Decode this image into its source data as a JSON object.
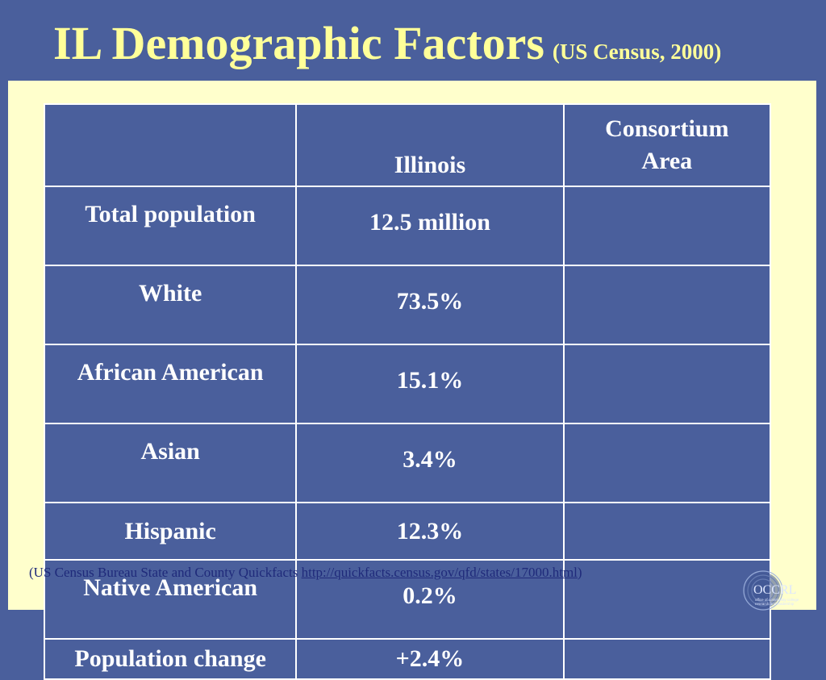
{
  "slide": {
    "title": "IL Demographic Factors",
    "subtitle": "(US Census, 2000)"
  },
  "table": {
    "header": {
      "col1": "",
      "col2": "Illinois",
      "col3_line1": "Consortium",
      "col3_line2": "Area"
    },
    "rows": [
      {
        "label": "Total population",
        "illinois": "12.5 million",
        "consortium": ""
      },
      {
        "label": "White",
        "illinois": "73.5%",
        "consortium": ""
      },
      {
        "label": "African American",
        "illinois": "15.1%",
        "consortium": ""
      },
      {
        "label": "Asian",
        "illinois": "3.4%",
        "consortium": ""
      },
      {
        "label": "Hispanic",
        "illinois": "12.3%",
        "consortium": ""
      },
      {
        "label": "Native American",
        "illinois": "0.2%",
        "consortium": ""
      },
      {
        "label": "Population change",
        "illinois": "+2.4%",
        "consortium": ""
      }
    ]
  },
  "source": {
    "prefix": "(US Census Bureau State and County Quickfacts ",
    "link": "http://quickfacts.census.gov/qfd/states/17000.html",
    "suffix": ")"
  },
  "logo": {
    "text": "OCCRL",
    "tagline_1": "office of community college",
    "tagline_2": "research and leadership"
  },
  "colors": {
    "background": "#4a5f9c",
    "title": "#ffff99",
    "panel": "#ffffcc",
    "table_fill": "#4a5f9c",
    "source_text": "#1f2a7a"
  }
}
